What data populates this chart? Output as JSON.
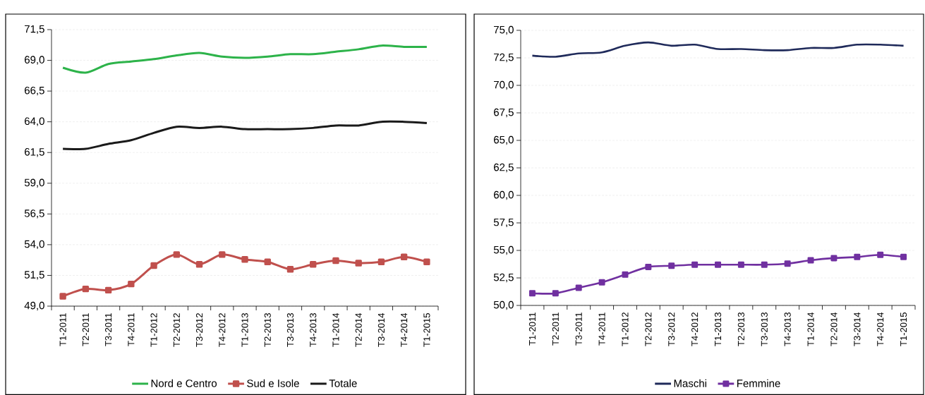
{
  "chart_data": [
    {
      "type": "line",
      "categories": [
        "T1-2011",
        "T2-2011",
        "T3-2011",
        "T4-2011",
        "T1-2012",
        "T2-2012",
        "T3-2012",
        "T4-2012",
        "T1-2013",
        "T2-2013",
        "T3-2013",
        "T4-2013",
        "T1-2014",
        "T2-2014",
        "T3-2014",
        "T4-2014",
        "T1-2015"
      ],
      "series": [
        {
          "name": "Nord e Centro",
          "color": "#2db34a",
          "marker": "none",
          "values": [
            68.4,
            68.0,
            68.7,
            68.9,
            69.1,
            69.4,
            69.6,
            69.3,
            69.2,
            69.3,
            69.5,
            69.5,
            69.7,
            69.9,
            70.2,
            70.1,
            70.1
          ]
        },
        {
          "name": "Sud e Isole",
          "color": "#c0504d",
          "marker": "square",
          "values": [
            49.8,
            50.4,
            50.3,
            50.8,
            52.3,
            53.2,
            52.4,
            53.2,
            52.8,
            52.6,
            52.0,
            52.4,
            52.7,
            52.5,
            52.6,
            53.0,
            52.6
          ]
        },
        {
          "name": "Totale",
          "color": "#1a1a1a",
          "marker": "none",
          "values": [
            61.8,
            61.8,
            62.2,
            62.5,
            63.1,
            63.6,
            63.5,
            63.6,
            63.4,
            63.4,
            63.4,
            63.5,
            63.7,
            63.7,
            64.0,
            64.0,
            63.9
          ]
        }
      ],
      "ylim": [
        49,
        71.5
      ],
      "yticks": [
        {
          "value": 49,
          "label": "49,0"
        },
        {
          "value": 51.5,
          "label": "51,5"
        },
        {
          "value": 54,
          "label": "54,0"
        },
        {
          "value": 56.5,
          "label": "56,5"
        },
        {
          "value": 59,
          "label": "59,0"
        },
        {
          "value": 61.5,
          "label": "61,5"
        },
        {
          "value": 64,
          "label": "64,0"
        },
        {
          "value": 66.5,
          "label": "66,5"
        },
        {
          "value": 69,
          "label": "69,0"
        },
        {
          "value": 71.5,
          "label": "71,5"
        }
      ],
      "grid": "y",
      "legend": "bottom"
    },
    {
      "type": "line",
      "categories": [
        "T1-2011",
        "T2-2011",
        "T3-2011",
        "T4-2011",
        "T1-2012",
        "T2-2012",
        "T3-2012",
        "T4-2012",
        "T1-2013",
        "T2-2013",
        "T3-2013",
        "T4-2013",
        "T1-2014",
        "T2-2014",
        "T3-2014",
        "T4-2014",
        "T1-2015"
      ],
      "series": [
        {
          "name": "Maschi",
          "color": "#1f2a5a",
          "marker": "none",
          "values": [
            72.7,
            72.6,
            72.9,
            73.0,
            73.6,
            73.9,
            73.6,
            73.7,
            73.3,
            73.3,
            73.2,
            73.2,
            73.4,
            73.4,
            73.7,
            73.7,
            73.6
          ]
        },
        {
          "name": "Femmine",
          "color": "#7030a0",
          "marker": "square",
          "values": [
            51.1,
            51.1,
            51.6,
            52.1,
            52.8,
            53.5,
            53.6,
            53.7,
            53.7,
            53.7,
            53.7,
            53.8,
            54.1,
            54.3,
            54.4,
            54.6,
            54.4
          ]
        }
      ],
      "ylim": [
        50,
        75
      ],
      "yticks": [
        {
          "value": 50,
          "label": "50,0"
        },
        {
          "value": 52.5,
          "label": "52,5"
        },
        {
          "value": 55,
          "label": "55,0"
        },
        {
          "value": 57.5,
          "label": "57,5"
        },
        {
          "value": 60,
          "label": "60,0"
        },
        {
          "value": 62.5,
          "label": "62,5"
        },
        {
          "value": 65,
          "label": "65,0"
        },
        {
          "value": 67.5,
          "label": "67,5"
        },
        {
          "value": 70,
          "label": "70,0"
        },
        {
          "value": 72.5,
          "label": "72,5"
        },
        {
          "value": 75,
          "label": "75,0"
        }
      ],
      "grid": "y",
      "legend": "bottom"
    }
  ]
}
